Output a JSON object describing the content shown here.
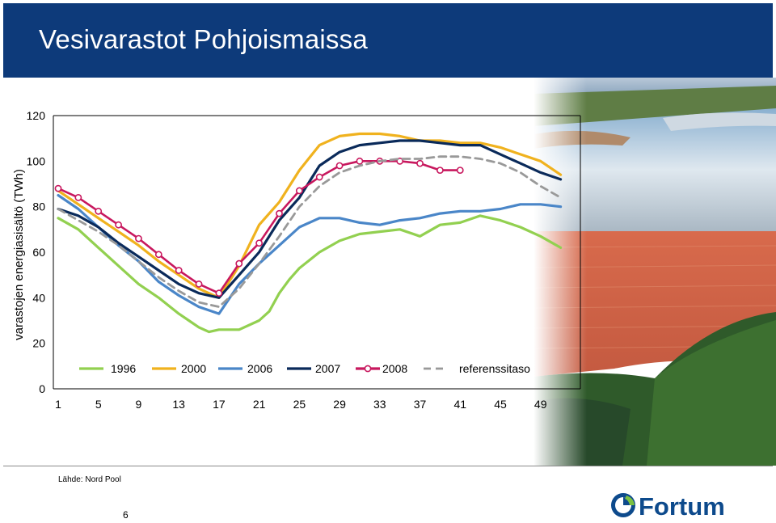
{
  "header": {
    "title": "Vesivarastot Pohjoismaissa"
  },
  "footer": {
    "source": "Lähde: Nord Pool",
    "page": "6"
  },
  "logo": {
    "text": "Fortum",
    "color": "#0d4a8c"
  },
  "chart_data": {
    "type": "line",
    "ylabel": "varastojen energiasisältö (TWh)",
    "xlabel": "",
    "ylim": [
      0,
      120
    ],
    "yticks": [
      0,
      20,
      40,
      60,
      80,
      100,
      120
    ],
    "xlim": [
      1,
      52
    ],
    "xticks": [
      1,
      5,
      9,
      13,
      17,
      21,
      25,
      29,
      33,
      37,
      41,
      45,
      49
    ],
    "legend_position": "bottom-inside",
    "series": [
      {
        "name": "1996",
        "color": "#92d050",
        "style": "solid",
        "x": [
          1,
          3,
          5,
          7,
          9,
          11,
          13,
          14,
          15,
          16,
          17,
          19,
          21,
          22,
          23,
          24,
          25,
          27,
          29,
          31,
          33,
          35,
          37,
          39,
          41,
          43,
          45,
          47,
          49,
          51
        ],
        "y": [
          75,
          70,
          62,
          54,
          46,
          40,
          33,
          30,
          27,
          25,
          26,
          26,
          30,
          34,
          42,
          48,
          53,
          60,
          65,
          68,
          69,
          70,
          67,
          72,
          73,
          76,
          74,
          71,
          67,
          62
        ]
      },
      {
        "name": "2000",
        "color": "#f0b21e",
        "style": "solid",
        "x": [
          1,
          3,
          5,
          7,
          9,
          11,
          13,
          15,
          17,
          19,
          21,
          23,
          25,
          27,
          29,
          31,
          33,
          35,
          37,
          39,
          41,
          43,
          45,
          47,
          49,
          51
        ],
        "y": [
          87,
          81,
          75,
          69,
          63,
          56,
          50,
          44,
          40,
          54,
          72,
          82,
          96,
          107,
          111,
          112,
          112,
          111,
          109,
          109,
          108,
          108,
          106,
          103,
          100,
          94
        ]
      },
      {
        "name": "2006",
        "color": "#4a86c8",
        "style": "solid",
        "x": [
          1,
          3,
          5,
          7,
          9,
          11,
          13,
          15,
          17,
          19,
          21,
          23,
          25,
          27,
          29,
          31,
          33,
          35,
          37,
          39,
          41,
          43,
          45,
          47,
          49,
          51
        ],
        "y": [
          85,
          79,
          71,
          63,
          56,
          47,
          41,
          36,
          33,
          46,
          55,
          63,
          71,
          75,
          75,
          73,
          72,
          74,
          75,
          77,
          78,
          78,
          79,
          81,
          81,
          80
        ]
      },
      {
        "name": "2007",
        "color": "#0a2a5a",
        "style": "solid",
        "x": [
          1,
          3,
          5,
          7,
          9,
          11,
          13,
          15,
          17,
          19,
          21,
          23,
          25,
          27,
          29,
          31,
          33,
          35,
          37,
          39,
          41,
          43,
          45,
          47,
          49,
          51
        ],
        "y": [
          79,
          76,
          71,
          64,
          58,
          52,
          46,
          42,
          40,
          50,
          60,
          74,
          84,
          98,
          104,
          107,
          108,
          109,
          109,
          108,
          107,
          107,
          103,
          99,
          95,
          92
        ]
      },
      {
        "name": "2008",
        "color": "#c8185e",
        "style": "markers",
        "x": [
          1,
          3,
          5,
          7,
          9,
          11,
          13,
          15,
          17,
          19,
          21,
          23,
          25,
          27,
          29,
          31,
          33,
          35,
          37,
          39,
          41
        ],
        "y": [
          88,
          84,
          78,
          72,
          66,
          59,
          52,
          46,
          42,
          55,
          64,
          77,
          87,
          93,
          98,
          100,
          100,
          100,
          99,
          96,
          96
        ]
      },
      {
        "name": "referenssitaso",
        "color": "#999999",
        "style": "dashed",
        "x": [
          1,
          3,
          5,
          7,
          9,
          11,
          13,
          15,
          17,
          19,
          21,
          23,
          25,
          27,
          29,
          31,
          33,
          35,
          37,
          39,
          41,
          43,
          45,
          47,
          49,
          51
        ],
        "y": [
          79,
          74,
          69,
          63,
          56,
          49,
          43,
          38,
          36,
          44,
          55,
          67,
          80,
          89,
          95,
          98,
          100,
          101,
          101,
          102,
          102,
          101,
          99,
          95,
          89,
          84
        ]
      }
    ]
  }
}
